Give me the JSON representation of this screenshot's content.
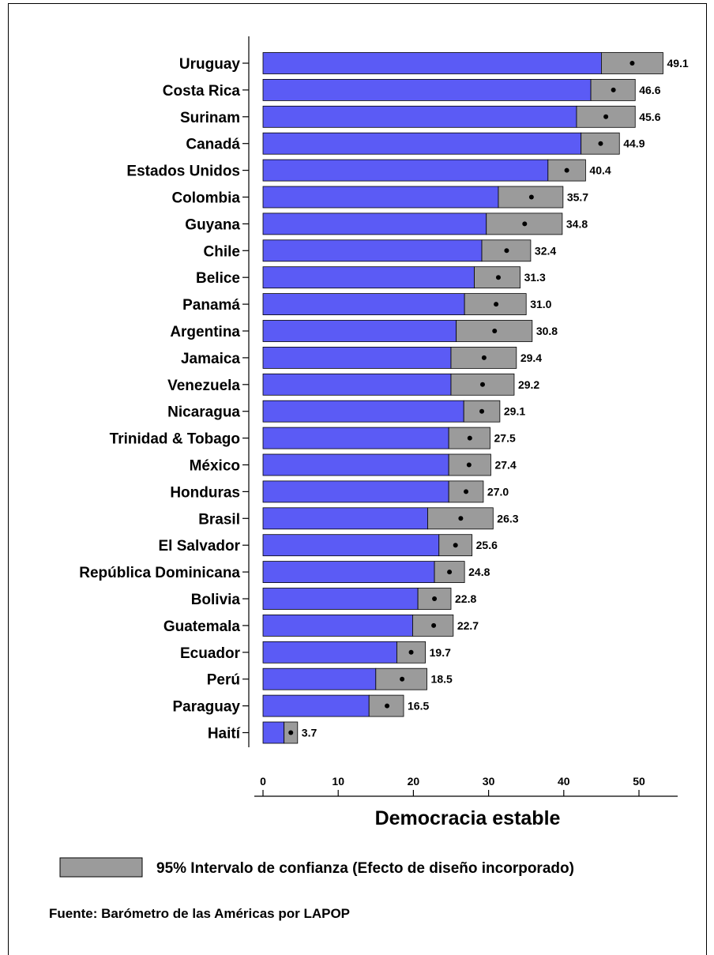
{
  "chart_data": {
    "type": "bar",
    "orientation": "horizontal",
    "xlabel": "Democracia estable",
    "xlim": [
      0,
      55
    ],
    "xticks": [
      0,
      10,
      20,
      30,
      40,
      50
    ],
    "series_color": "#5b5bf5",
    "ci_color": "#9b9b9b",
    "categories": [
      "Uruguay",
      "Costa Rica",
      "Surinam",
      "Canadá",
      "Estados Unidos",
      "Colombia",
      "Guyana",
      "Chile",
      "Belice",
      "Panamá",
      "Argentina",
      "Jamaica",
      "Venezuela",
      "Nicaragua",
      "Trinidad & Tobago",
      "México",
      "Honduras",
      "Brasil",
      "El Salvador",
      "República Dominicana",
      "Bolivia",
      "Guatemala",
      "Ecuador",
      "Perú",
      "Paraguay",
      "Haití"
    ],
    "values": [
      49.1,
      46.6,
      45.6,
      44.9,
      40.4,
      35.7,
      34.8,
      32.4,
      31.3,
      31.0,
      30.8,
      29.4,
      29.2,
      29.1,
      27.5,
      27.4,
      27.0,
      26.3,
      25.6,
      24.8,
      22.8,
      22.7,
      19.7,
      18.5,
      16.5,
      3.7
    ],
    "value_labels": [
      "49.1",
      "46.6",
      "45.6",
      "44.9",
      "40.4",
      "35.7",
      "34.8",
      "32.4",
      "31.3",
      "31.0",
      "30.8",
      "29.4",
      "29.2",
      "29.1",
      "27.5",
      "27.4",
      "27.0",
      "26.3",
      "25.6",
      "24.8",
      "22.8",
      "22.7",
      "19.7",
      "18.5",
      "16.5",
      "3.7"
    ],
    "ci_low": [
      45.0,
      43.6,
      41.7,
      42.3,
      37.9,
      31.3,
      29.7,
      29.1,
      28.1,
      26.8,
      25.7,
      25.0,
      25.0,
      26.7,
      24.7,
      24.7,
      24.7,
      21.9,
      23.4,
      22.8,
      20.6,
      19.9,
      17.8,
      15.0,
      14.1,
      2.8
    ],
    "ci_high": [
      53.2,
      49.5,
      49.5,
      47.4,
      42.9,
      39.9,
      39.8,
      35.6,
      34.2,
      35.0,
      35.8,
      33.7,
      33.4,
      31.5,
      30.2,
      30.3,
      29.3,
      30.6,
      27.8,
      26.8,
      25.0,
      25.3,
      21.6,
      21.8,
      18.7,
      4.6
    ],
    "legend": {
      "label": "95% Intervalo de confianza (Efecto de diseño incorporado)",
      "placement": "bottom"
    },
    "source": "Fuente: Barómetro de las Américas por LAPOP"
  }
}
